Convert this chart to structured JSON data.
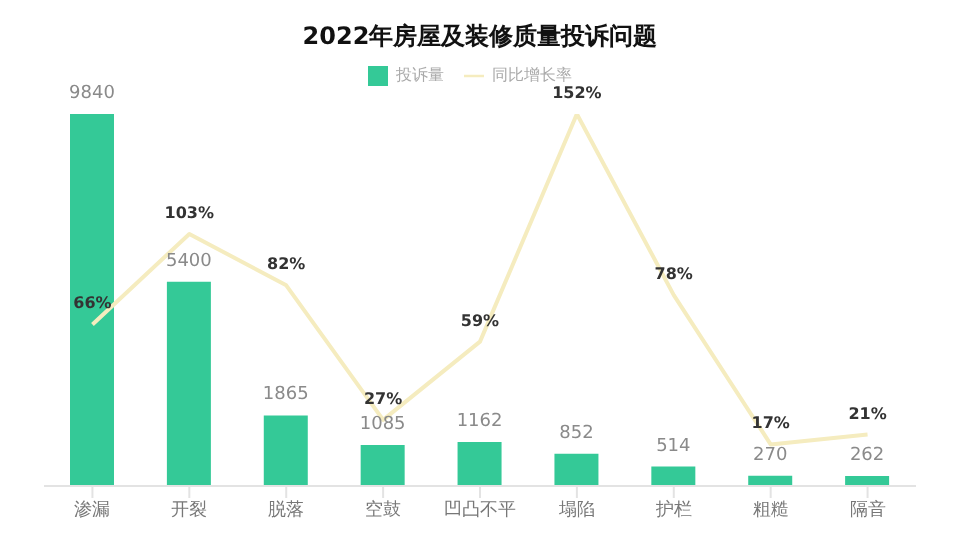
{
  "chart_data": {
    "type": "bar",
    "title": "2022年房屋及装修质量投诉问题",
    "categories": [
      "渗漏",
      "开裂",
      "脱落",
      "空鼓",
      "凹凸不平",
      "塌陷",
      "护栏",
      "粗糙",
      "隔音"
    ],
    "series": [
      {
        "name": "投诉量",
        "color": "#34c997",
        "values": [
          9840,
          5400,
          1865,
          1085,
          1162,
          852,
          514,
          270,
          262
        ],
        "value_labels": [
          "9840",
          "5400",
          "1865",
          "1085",
          "1162",
          "852",
          "514",
          "270",
          "262"
        ]
      },
      {
        "name": "同比增长率",
        "type": "line",
        "axis": "y2",
        "color": "#f5ecbf",
        "values": [
          66,
          103,
          82,
          27,
          59,
          152,
          78,
          17,
          21
        ],
        "value_labels": [
          "66%",
          "103%",
          "82%",
          "27%",
          "59%",
          "152%",
          "78%",
          "17%",
          "21%"
        ]
      }
    ],
    "legend": "top",
    "marker": "none",
    "tick_labels": "x"
  }
}
